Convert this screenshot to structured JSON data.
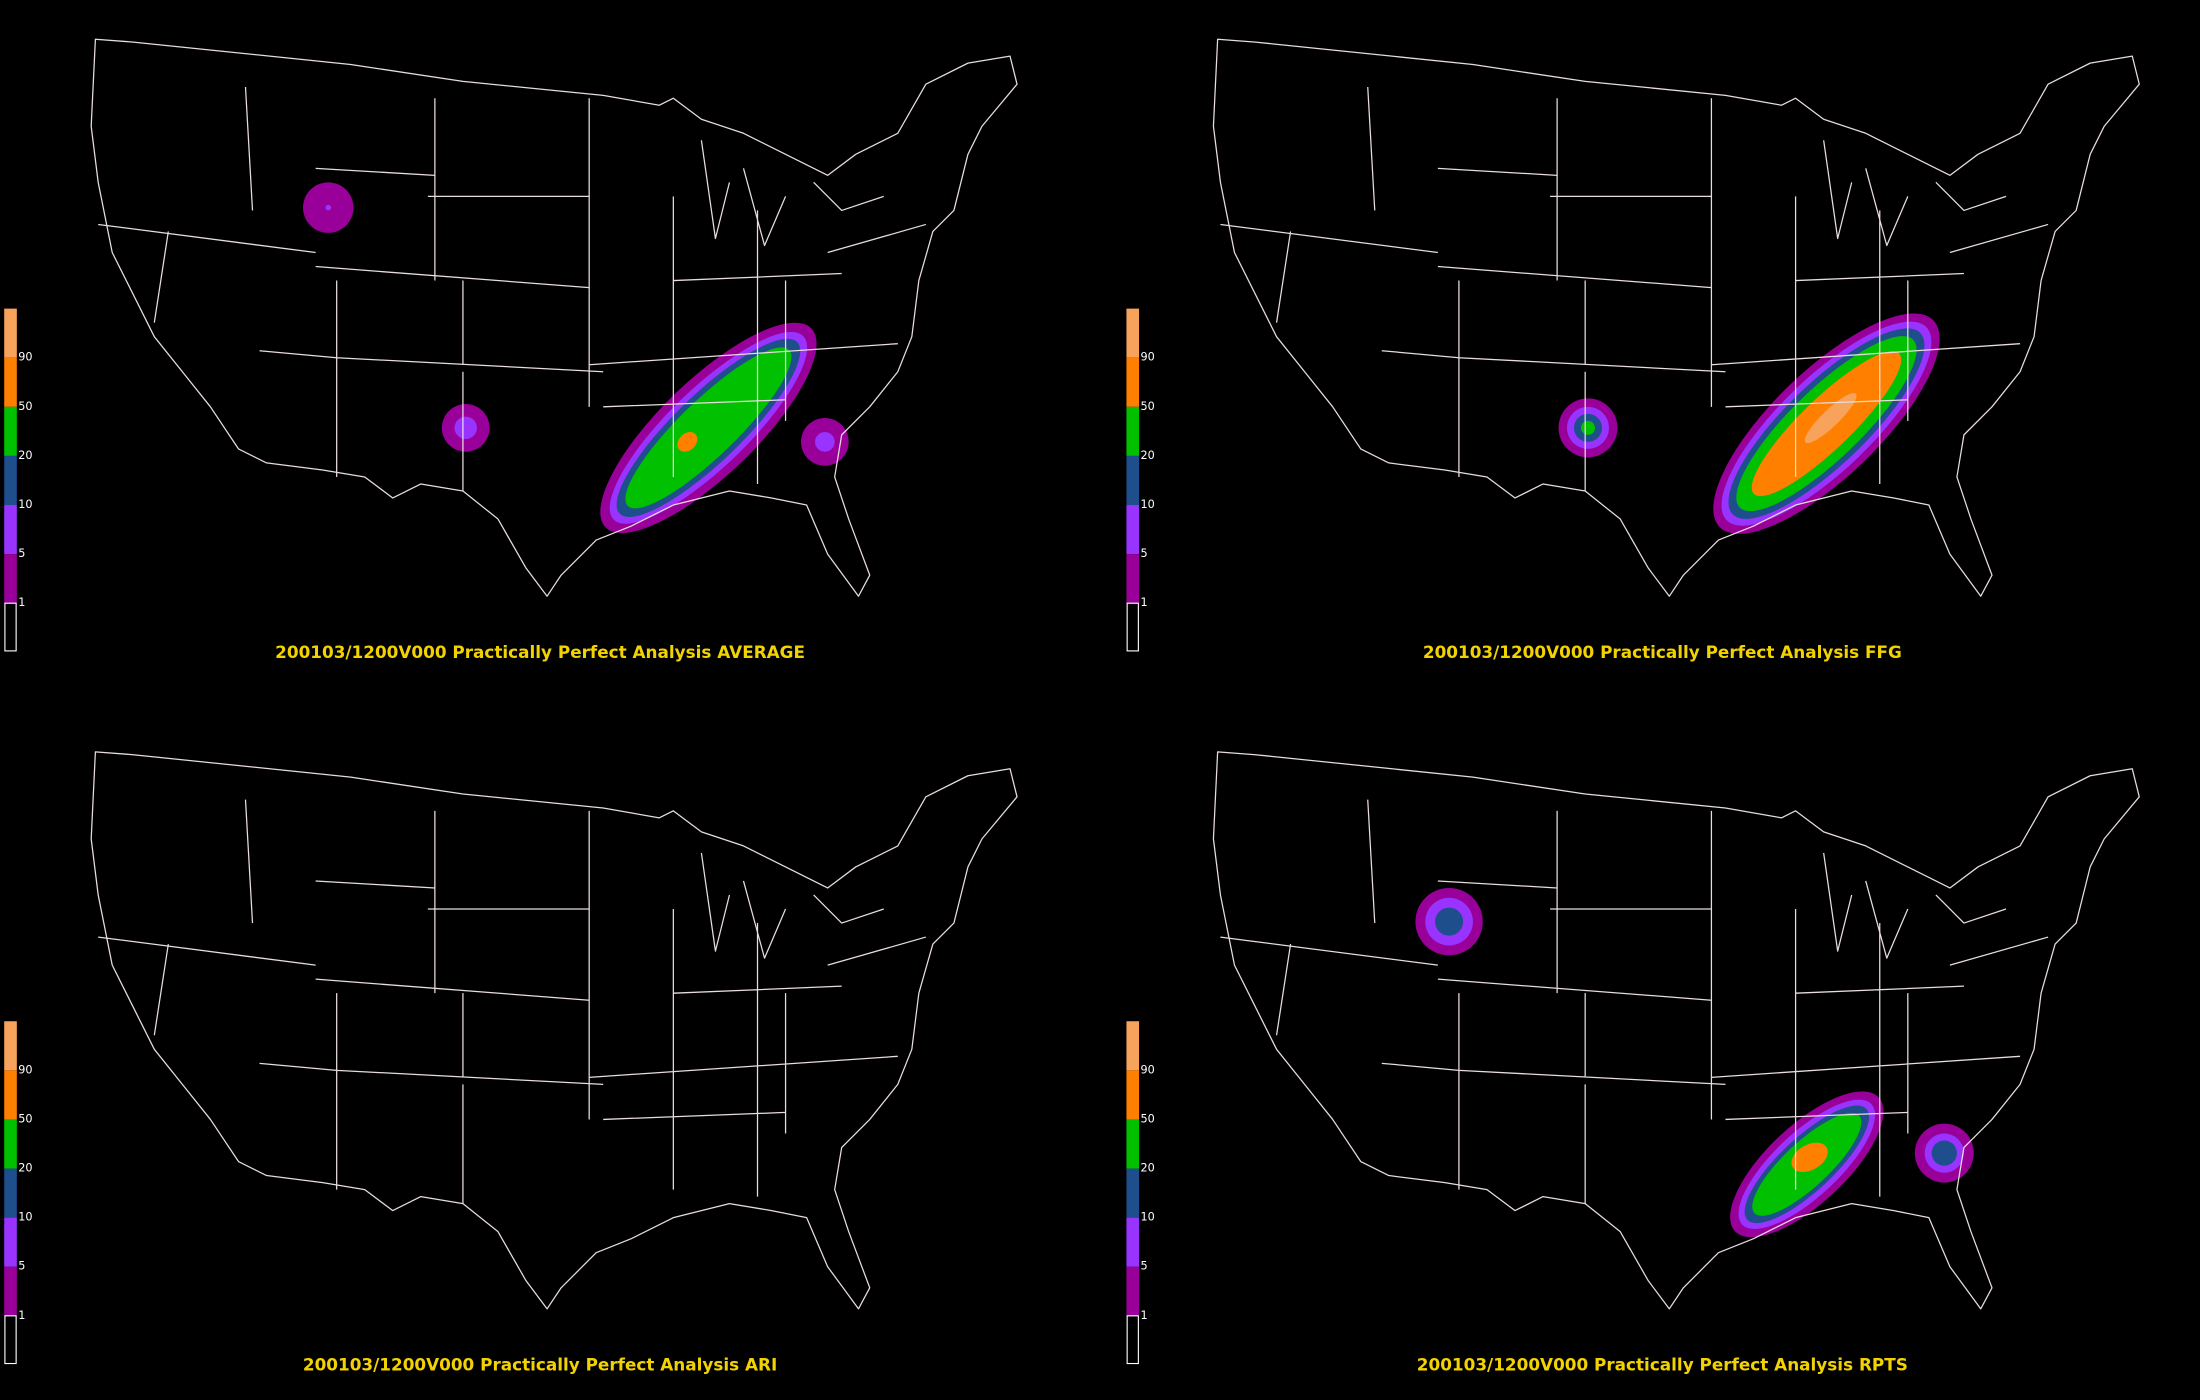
{
  "panels": [
    {
      "title": "200103/1200V000 Practically Perfect Analysis AVERAGE"
    },
    {
      "title": "200103/1200V000 Practically Perfect Analysis FFG"
    },
    {
      "title": "200103/1200V000 Practically Perfect Analysis ARI"
    },
    {
      "title": "200103/1200V000 Practically Perfect Analysis RPTS"
    }
  ],
  "colorbar": {
    "labels": [
      90,
      50,
      20,
      10,
      5,
      1
    ],
    "colors": [
      "#f7a35c",
      "#ff7f00",
      "#00c000",
      "#1f4e8c",
      "#9933ff",
      "#990099"
    ]
  }
}
